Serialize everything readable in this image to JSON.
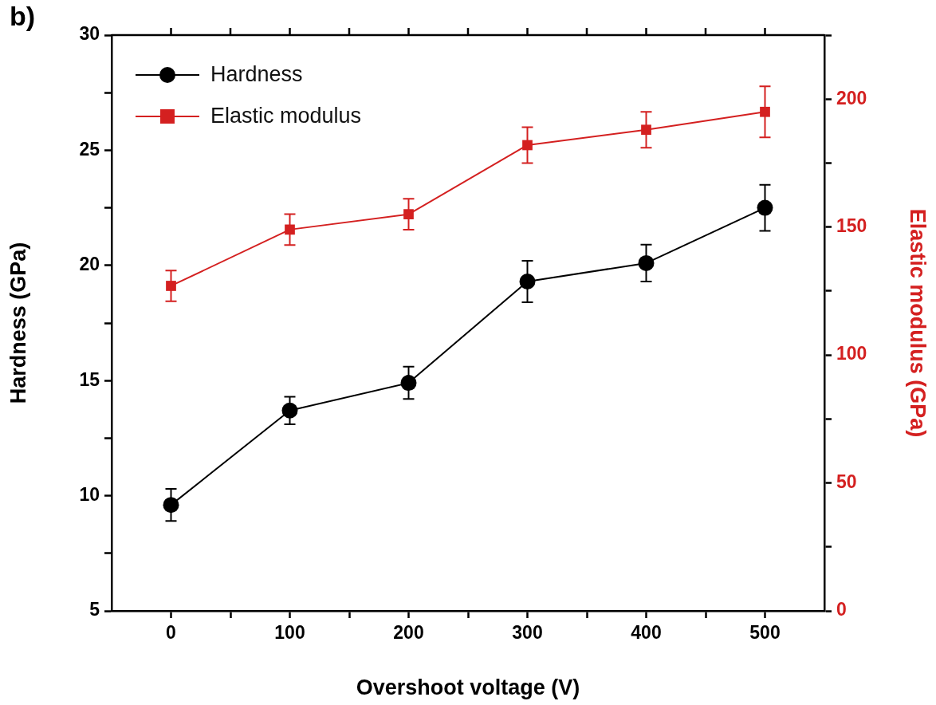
{
  "chart_data": {
    "type": "line",
    "xlabel": "Overshoot voltage (V)",
    "ylabel": "Hardness (GPa)",
    "y2label": "Elastic modulus (GPa)",
    "annotations": [
      "b)"
    ],
    "x": [
      0,
      100,
      200,
      300,
      400,
      500
    ],
    "series": [
      {
        "name": "Hardness",
        "color": "#000000",
        "marker": "circle",
        "values": [
          9.6,
          13.7,
          14.9,
          19.3,
          20.1,
          22.5
        ],
        "errors": [
          0.7,
          0.6,
          0.7,
          0.9,
          0.8,
          1.0
        ]
      },
      {
        "name": "Elastic modulus",
        "color": "#d42020",
        "marker": "square",
        "axis": "y2",
        "values": [
          127,
          149,
          155,
          182,
          188,
          195
        ],
        "errors": [
          6,
          6,
          6,
          7,
          7,
          10
        ]
      }
    ],
    "xlim": [
      -50,
      550
    ],
    "xticks": [
      0,
      {
        "value": 50,
        "label": null
      },
      100,
      {
        "value": 150,
        "label": null
      },
      200,
      {
        "value": 250,
        "label": null
      },
      300,
      {
        "value": 350,
        "label": null
      },
      400,
      {
        "value": 450,
        "label": null
      },
      500
    ],
    "ylim": [
      5,
      30
    ],
    "yticks": [
      5,
      {
        "value": 7.5,
        "label": null
      },
      10,
      {
        "value": 12.5,
        "label": null
      },
      15,
      {
        "value": 17.5,
        "label": null
      },
      20,
      {
        "value": 22.5,
        "label": null
      },
      25,
      {
        "value": 27.5,
        "label": null
      },
      30
    ],
    "y2lim": [
      0,
      225
    ],
    "y2ticks": [
      0,
      {
        "value": 25,
        "label": null
      },
      50,
      {
        "value": 75,
        "label": null
      },
      100,
      {
        "value": 125,
        "label": null
      },
      150,
      {
        "value": 175,
        "label": null
      },
      200,
      {
        "value": 225,
        "label": null
      }
    ],
    "legend": "top left",
    "grid": false,
    "line_style": "solid"
  }
}
